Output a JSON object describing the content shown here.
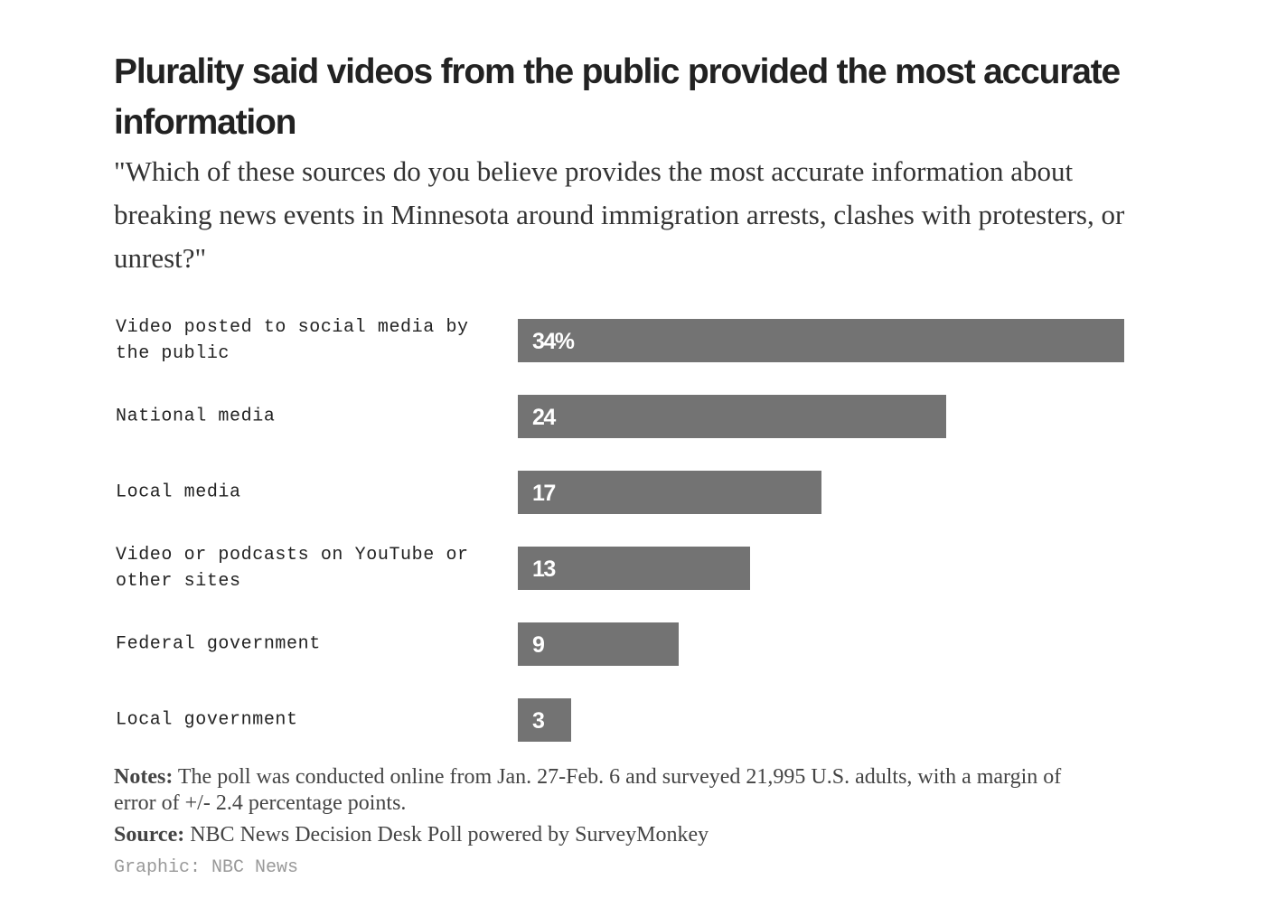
{
  "chart_data": {
    "type": "bar",
    "orientation": "horizontal",
    "title": "Plurality said videos from the public provided the most accurate information",
    "subtitle": "\"Which of these sources do you believe provides the most accurate information about breaking news events in Minnesota around immigration arrests, clashes with protesters, or unrest?\"",
    "categories": [
      "Video posted to social media by the public",
      "National media",
      "Local media",
      "Video or podcasts on YouTube or other sites",
      "Federal government",
      "Local government"
    ],
    "values": [
      34,
      24,
      17,
      13,
      9,
      3
    ],
    "value_labels": [
      "34%",
      "24",
      "17",
      "13",
      "9",
      "3"
    ],
    "color": "#737373"
  },
  "notes": {
    "label": "Notes:",
    "text": "The poll was conducted online from Jan. 27-Feb. 6 and surveyed 21,995 U.S. adults, with a margin of error of +/- 2.4 percentage points."
  },
  "source": {
    "label": "Source:",
    "text": "NBC News Decision Desk Poll powered by SurveyMonkey"
  },
  "credit": "Graphic: NBC News"
}
